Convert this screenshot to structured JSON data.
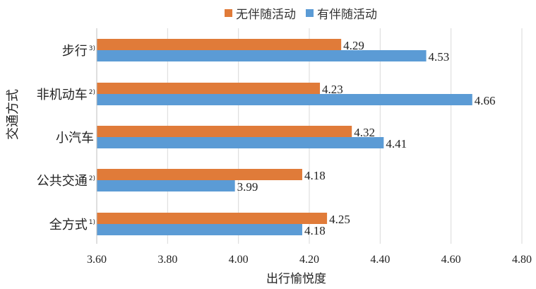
{
  "chart_data": {
    "type": "bar",
    "orientation": "horizontal",
    "categories": [
      {
        "name": "步行",
        "note": "3)"
      },
      {
        "name": "非机动车",
        "note": "2)"
      },
      {
        "name": "小汽车",
        "note": ""
      },
      {
        "name": "公共交通",
        "note": "2)"
      },
      {
        "name": "全方式",
        "note": "1)"
      }
    ],
    "series": [
      {
        "name": "无伴随活动",
        "color": "#E07B39",
        "values": [
          4.29,
          4.23,
          4.32,
          4.18,
          4.25
        ]
      },
      {
        "name": "有伴随活动",
        "color": "#5B9BD5",
        "values": [
          4.53,
          4.66,
          4.41,
          3.99,
          4.18
        ]
      }
    ],
    "xlabel": "出行愉悦度",
    "ylabel": "交通方式",
    "xlim": [
      3.6,
      4.8
    ],
    "xticks": [
      "3.60",
      "3.80",
      "4.00",
      "4.20",
      "4.40",
      "4.60",
      "4.80"
    ],
    "grid": "vertical",
    "legend": "top"
  }
}
